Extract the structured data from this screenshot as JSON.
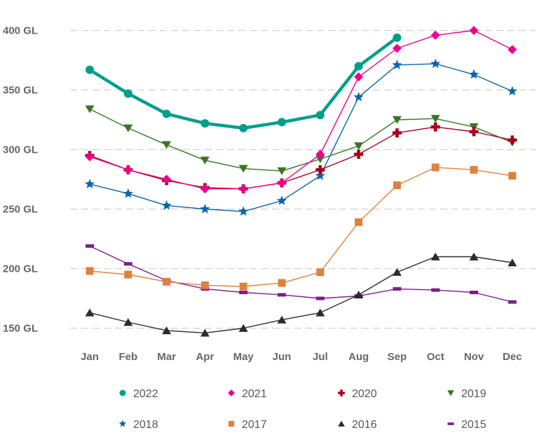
{
  "chart_data": {
    "type": "line",
    "title": "",
    "xlabel": "",
    "ylabel": "",
    "categories": [
      "Jan",
      "Feb",
      "Mar",
      "Apr",
      "May",
      "Jun",
      "Jul",
      "Aug",
      "Sep",
      "Oct",
      "Nov",
      "Dec"
    ],
    "ylim": [
      150,
      400
    ],
    "yticks": [
      400,
      350,
      300,
      250,
      200,
      150
    ],
    "ytick_labels": [
      "400 GL",
      "350 GL",
      "300 GL",
      "250 GL",
      "200 GL",
      "150 GL"
    ],
    "grid": true,
    "legend_position": "bottom",
    "series": [
      {
        "name": "2022",
        "color": "#009e8c",
        "marker": "circle",
        "emphasis": true,
        "values": [
          367,
          347,
          330,
          322,
          318,
          323,
          329,
          370,
          394,
          null,
          null,
          null
        ]
      },
      {
        "name": "2021",
        "color": "#ec008c",
        "marker": "diamond",
        "values": [
          294,
          283,
          275,
          267,
          267,
          272,
          296,
          361,
          385,
          396,
          400,
          384
        ]
      },
      {
        "name": "2020",
        "color": "#a6001a",
        "marker": "cross",
        "values": [
          295,
          283,
          274,
          268,
          267,
          272,
          283,
          296,
          314,
          319,
          315,
          308
        ]
      },
      {
        "name": "2019",
        "color": "#3a7526",
        "marker": "triangle-down",
        "values": [
          334,
          318,
          304,
          291,
          284,
          282,
          292,
          303,
          325,
          326,
          319,
          306
        ]
      },
      {
        "name": "2018",
        "color": "#0b64a8",
        "marker": "star",
        "values": [
          271,
          263,
          253,
          250,
          248,
          257,
          278,
          344,
          371,
          372,
          363,
          349
        ]
      },
      {
        "name": "2017",
        "color": "#e0803d",
        "marker": "square",
        "values": [
          198,
          195,
          189,
          186,
          185,
          188,
          197,
          239,
          270,
          285,
          283,
          278
        ]
      },
      {
        "name": "2016",
        "color": "#2b2b2b",
        "marker": "triangle-up",
        "values": [
          163,
          155,
          148,
          146,
          150,
          157,
          163,
          178,
          197,
          210,
          210,
          205
        ]
      },
      {
        "name": "2015",
        "color": "#7b1f8a",
        "marker": "dash",
        "values": [
          219,
          204,
          190,
          183,
          180,
          178,
          175,
          177,
          183,
          182,
          180,
          172
        ]
      }
    ]
  }
}
